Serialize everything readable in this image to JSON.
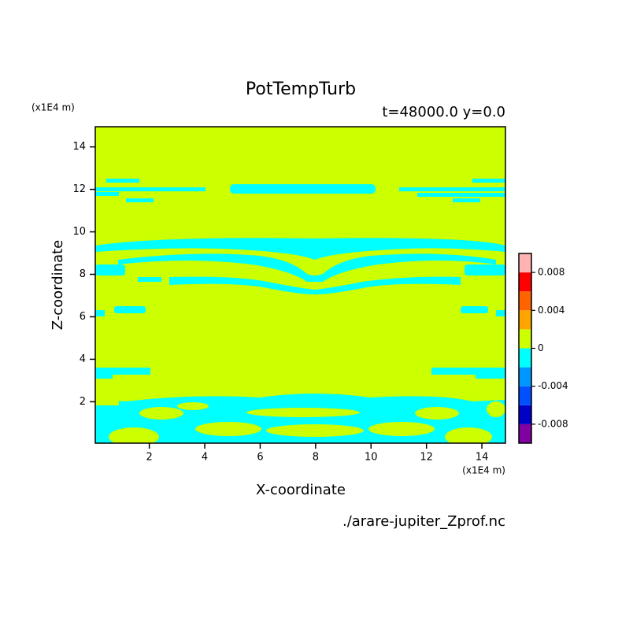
{
  "chart_data": {
    "type": "contour",
    "title": "PotTempTurb",
    "subtitle": "t=48000.0 y=0.0",
    "x_label": "X-coordinate",
    "y_label": "Z-coordinate",
    "x_unit": "(x1E4 m)",
    "y_unit": "(x1E4 m)",
    "file": "./arare-jupiter_Zprof.nc",
    "xlim": [
      0.05,
      14.85
    ],
    "ylim": [
      0.05,
      14.95
    ],
    "xticks": [
      2,
      4,
      6,
      8,
      10,
      12,
      14
    ],
    "yticks": [
      2,
      4,
      6,
      8,
      10,
      12,
      14
    ],
    "colorbar": {
      "clim": [
        -0.01,
        0.01
      ],
      "colors": [
        "#8000a0",
        "#0000c8",
        "#0050ff",
        "#0096ff",
        "#00ffff",
        "#ccff00",
        "#ffa500",
        "#ff6400",
        "#ff0000",
        "#ffb4b4"
      ],
      "ticks": [
        -0.008,
        -0.004,
        0,
        0.004,
        0.008
      ]
    }
  }
}
